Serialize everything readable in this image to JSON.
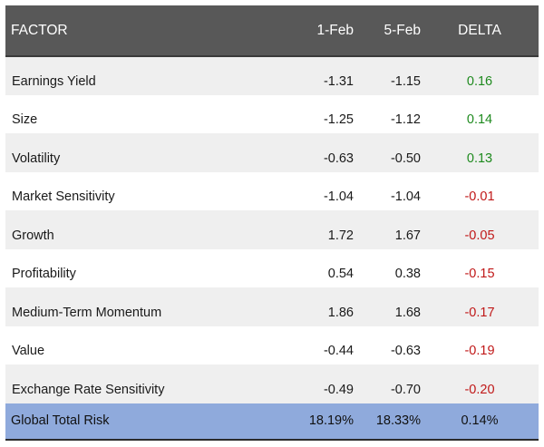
{
  "table": {
    "headers": {
      "factor": "FACTOR",
      "date1": "1-Feb",
      "date2": "5-Feb",
      "delta": "DELTA"
    },
    "rows": [
      {
        "factor": "Earnings Yield",
        "v1": "-1.31",
        "v2": "-1.15",
        "delta": "0.16",
        "sign": "pos"
      },
      {
        "factor": "Size",
        "v1": "-1.25",
        "v2": "-1.12",
        "delta": "0.14",
        "sign": "pos"
      },
      {
        "factor": "Volatility",
        "v1": "-0.63",
        "v2": "-0.50",
        "delta": "0.13",
        "sign": "pos"
      },
      {
        "factor": "Market Sensitivity",
        "v1": "-1.04",
        "v2": "-1.04",
        "delta": "-0.01",
        "sign": "neg"
      },
      {
        "factor": "Growth",
        "v1": "1.72",
        "v2": "1.67",
        "delta": "-0.05",
        "sign": "neg"
      },
      {
        "factor": "Profitability",
        "v1": "0.54",
        "v2": "0.38",
        "delta": "-0.15",
        "sign": "neg"
      },
      {
        "factor": "Medium-Term Momentum",
        "v1": "1.86",
        "v2": "1.68",
        "delta": "-0.17",
        "sign": "neg"
      },
      {
        "factor": "Value",
        "v1": "-0.44",
        "v2": "-0.63",
        "delta": "-0.19",
        "sign": "neg"
      },
      {
        "factor": "Exchange Rate Sensitivity",
        "v1": "-0.49",
        "v2": "-0.70",
        "delta": "-0.20",
        "sign": "neg"
      }
    ],
    "total": {
      "factor": "Global Total Risk",
      "v1": "18.19%",
      "v2": "18.33%",
      "delta": "0.14%"
    }
  },
  "colors": {
    "header_bg": "#585858",
    "total_bg": "#8faadc",
    "positive": "#1e8a1e",
    "negative": "#c01818"
  }
}
